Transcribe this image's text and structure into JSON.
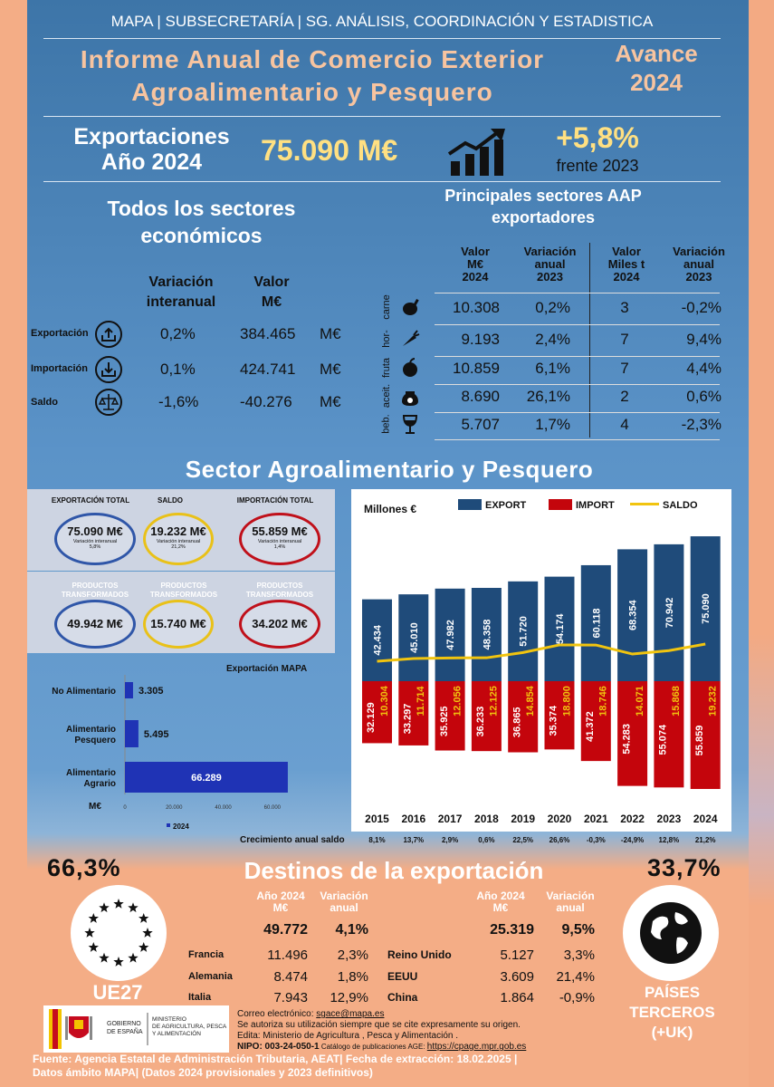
{
  "header": {
    "top_bar": "MAPA   |   SUBSECRETARÍA   |   SG. ANÁLISIS, COORDINACIÓN Y ESTADISTICA",
    "title_line1": "Informe Anual de Comercio Exterior",
    "title_line2": "Agroalimentario y Pesquero",
    "avance_line1": "Avance",
    "avance_line2": "2024"
  },
  "export_summary": {
    "label_line1": "Exportaciones",
    "label_line2": "Año 2024",
    "value": "75.090 M€",
    "change": "+5,8%",
    "change_note": "frente 2023"
  },
  "all_sectors": {
    "title_line1": "Todos los sectores",
    "title_line2": "económicos",
    "col1_line1": "Variación",
    "col1_line2": "interanual",
    "col2_line1": "Valor",
    "col2_line2": "M€",
    "rows": [
      {
        "label": "Exportación",
        "variation": "0,2%",
        "value": "384.465",
        "unit": "M€"
      },
      {
        "label": "Importación",
        "variation": "0,1%",
        "value": "424.741",
        "unit": "M€"
      },
      {
        "label": "Saldo",
        "variation": "-1,6%",
        "value": "-40.276",
        "unit": "M€"
      }
    ]
  },
  "main_sectors": {
    "title_line1": "Principales sectores  AAP",
    "title_line2": "exportadores",
    "headers": [
      [
        "Valor",
        "M€",
        "2024"
      ],
      [
        "Variación",
        "anual",
        "2023"
      ],
      [
        "Valor",
        "Miles t",
        "2024"
      ],
      [
        "Variación",
        "anual",
        "2023"
      ]
    ],
    "rows": [
      {
        "sector": "carne",
        "icon": "meat-icon",
        "v1": "10.308",
        "v2": "0,2%",
        "v3": "3",
        "v4": "-0,2%"
      },
      {
        "sector": "hor-",
        "icon": "carrot-icon",
        "v1": "9.193",
        "v2": "2,4%",
        "v3": "7",
        "v4": "9,4%"
      },
      {
        "sector": "fruta",
        "icon": "apple-icon",
        "v1": "10.859",
        "v2": "6,1%",
        "v3": "7",
        "v4": "4,4%"
      },
      {
        "sector": "aceit.",
        "icon": "oil-jar-icon",
        "v1": "8.690",
        "v2": "26,1%",
        "v3": "2",
        "v4": "0,6%"
      },
      {
        "sector": "beb.",
        "icon": "wine-glass-icon",
        "v1": "5.707",
        "v2": "1,7%",
        "v3": "4",
        "v4": "-2,3%"
      }
    ]
  },
  "agro": {
    "title": "Sector Agroalimentario y Pesquero",
    "cards": [
      {
        "heading": "EXPORTACIÓN TOTAL",
        "value": "75.090 M€",
        "note1": "Variación interanual",
        "note2": "5,8%",
        "color": "#2f56a8"
      },
      {
        "heading": "SALDO",
        "value": "19.232 M€",
        "note1": "Variación interanual",
        "note2": "21,2%",
        "color": "#e9c118"
      },
      {
        "heading": "IMPORTACIÓN TOTAL",
        "value": "55.859 M€",
        "note1": "Variación interanual",
        "note2": "1,4%",
        "color": "#c0101a"
      }
    ],
    "transformed": [
      {
        "heading": "PRODUCTOS TRANSFORMADOS",
        "value": "49.942 M€",
        "color": "#2f56a8"
      },
      {
        "heading": "PRODUCTOS TRANSFORMADOS",
        "value": "15.740 M€",
        "color": "#e9c118"
      },
      {
        "heading": "PRODUCTOS TRANSFORMADOS",
        "value": "34.202 M€",
        "color": "#c0101a"
      }
    ]
  },
  "hbar": {
    "title": "Exportación MAPA",
    "unit": "M€",
    "legend": "2024",
    "ticks": [
      "0",
      "20.000",
      "40.000",
      "60.000"
    ]
  },
  "chart_data": [
    {
      "type": "bar",
      "title": "Exportación MAPA",
      "orientation": "horizontal",
      "categories": [
        "No Alimentario",
        "Alimentario Pesquero",
        "Alimentario Agrario"
      ],
      "series": [
        {
          "name": "2024",
          "values": [
            3305,
            5495,
            66289
          ]
        }
      ],
      "value_labels": [
        "3.305",
        "5.495",
        "66.289"
      ],
      "xlabel": "M€",
      "xlim": [
        0,
        70000
      ],
      "ticks": [
        0,
        20000,
        40000,
        60000
      ],
      "legend": "bottom",
      "bar_color": "#1f33b5"
    },
    {
      "type": "bar",
      "ylabel": "Millones €",
      "categories": [
        "2015",
        "2016",
        "2017",
        "2018",
        "2019",
        "2020",
        "2021",
        "2022",
        "2023",
        "2024"
      ],
      "series": [
        {
          "name": "EXPORT",
          "values": [
            42434,
            45010,
            47982,
            48358,
            51720,
            54174,
            60118,
            68354,
            70942,
            75090
          ],
          "labels": [
            "42.434",
            "45.010",
            "47.982",
            "48.358",
            "51.720",
            "54.174",
            "60.118",
            "68.354",
            "70.942",
            "75.090"
          ],
          "color": "#1f4b7a"
        },
        {
          "name": "IMPORT",
          "values": [
            32129,
            33297,
            35925,
            36233,
            36865,
            35374,
            41372,
            54283,
            55074,
            55859
          ],
          "labels": [
            "32.129",
            "33.297",
            "35.925",
            "36.233",
            "36.865",
            "35.374",
            "41.372",
            "54.283",
            "55.074",
            "55.859"
          ],
          "color": "#c4050c"
        },
        {
          "name": "SALDO",
          "values": [
            10304,
            11714,
            12056,
            12125,
            14854,
            18800,
            18746,
            14071,
            15868,
            19232
          ],
          "labels": [
            "10.304",
            "11.714",
            "12.056",
            "12.125",
            "14.854",
            "18.800",
            "18.746",
            "14.071",
            "15.868",
            "19.232"
          ],
          "color": "#f1c40f"
        }
      ],
      "growth_label": "Crecimiento anual saldo",
      "growth": [
        "8,1%",
        "13,7%",
        "2,9%",
        "0,6%",
        "22,5%",
        "26,6%",
        "-0,3%",
        "-24,9%",
        "12,8%",
        "21,2%"
      ],
      "legend": "top"
    }
  ],
  "destinations": {
    "title": "Destinos de la exportación",
    "ue_pct": "66,3%",
    "ue_label": "UE27",
    "third_pct": "33,7%",
    "third_line1": "PAÍSES",
    "third_line2": "TERCEROS",
    "third_line3": "(+UK)",
    "col_year_line1": "Año  2024",
    "col_year_line2": "M€",
    "col_var_line1": "Variación",
    "col_var_line2": "anual",
    "ue_total": {
      "value": "49.772",
      "var": "4,1%"
    },
    "ue_rows": [
      {
        "country": "Francia",
        "value": "11.496",
        "var": "2,3%"
      },
      {
        "country": "Alemania",
        "value": "8.474",
        "var": "1,8%"
      },
      {
        "country": "Italia",
        "value": "7.943",
        "var": "12,9%"
      }
    ],
    "third_total": {
      "value": "25.319",
      "var": "9,5%"
    },
    "third_rows": [
      {
        "country": "Reino Unido",
        "value": "5.127",
        "var": "3,3%"
      },
      {
        "country": "EEUU",
        "value": "3.609",
        "var": "21,4%"
      },
      {
        "country": "China",
        "value": "1.864",
        "var": "-0,9%"
      }
    ]
  },
  "footer": {
    "gov_line1": "GOBIERNO",
    "gov_line2": "DE ESPAÑA",
    "min_line1": "MINISTERIO",
    "min_line2": "DE AGRICULTURA, PESCA",
    "min_line3": "Y ALIMENTACIÓN",
    "email_label": "Correo electrónico: ",
    "email": "sgace@mapa.es",
    "line2": "Se autoriza su utilización siempre que se cite expresamente su origen.",
    "line3": "Edita: Ministerio de Agricultura , Pesca y Alimentación .",
    "nipo_label": "NIPO: 003-24-050-1",
    "catalog_label": " Catálogo de publicaciones AGE: ",
    "catalog_url": "https://cpage.mpr.gob.es",
    "source_line1": "Fuente: Agencia Estatal de Administración Tributaria, AEAT|   Fecha de extracción: 18.02.2025 |",
    "source_line2": "Datos ámbito MAPA| (Datos 2024 provisionales y 2023 definitivos)"
  }
}
